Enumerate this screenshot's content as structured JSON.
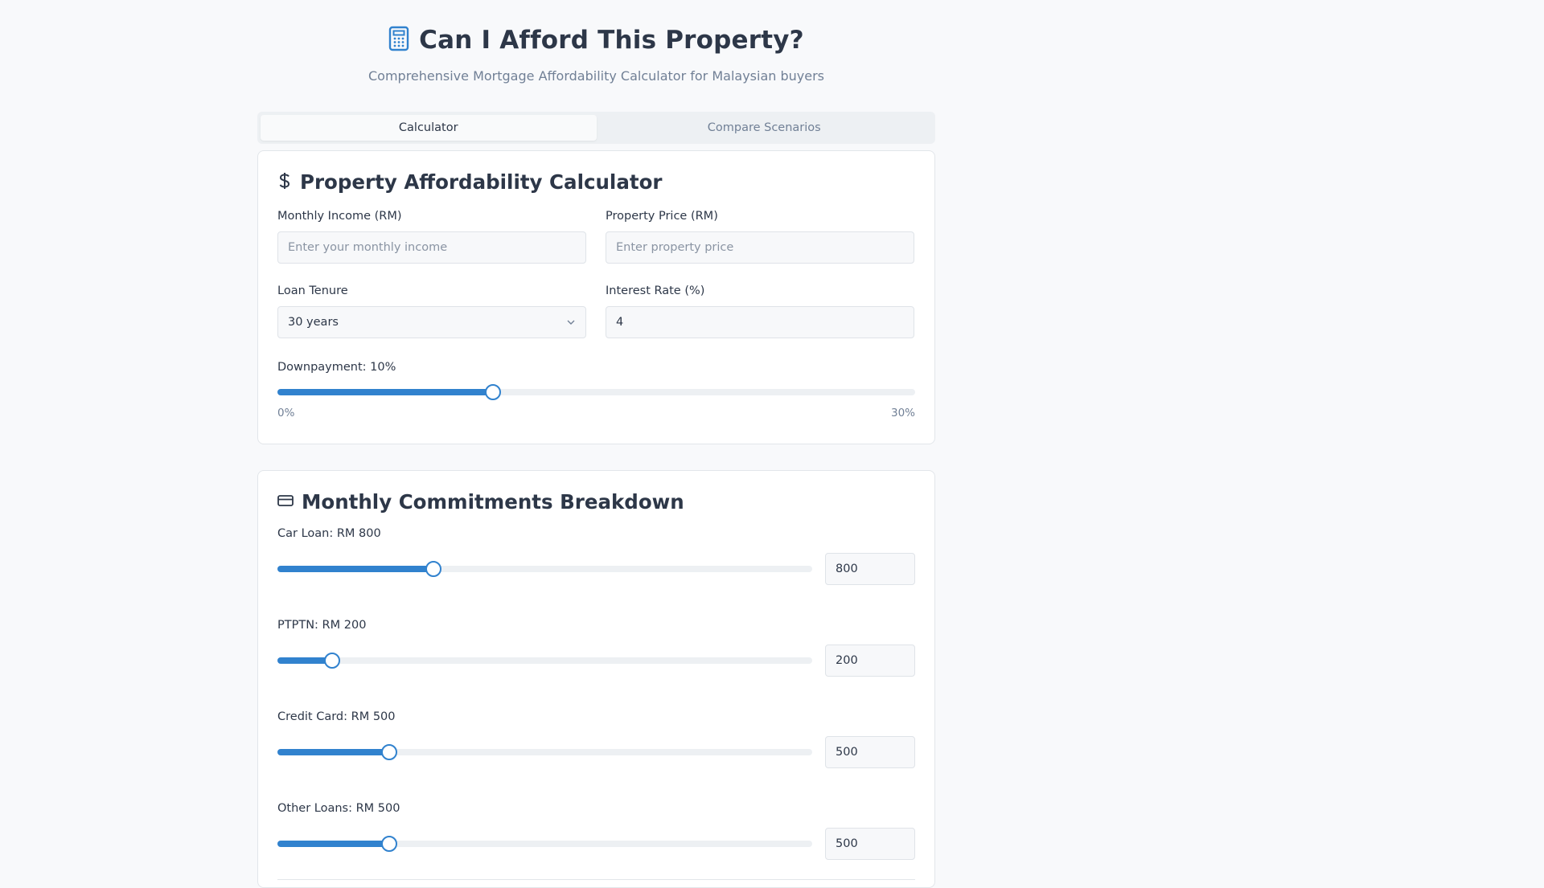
{
  "header": {
    "title": "Can I Afford This Property?",
    "subtitle": "Comprehensive Mortgage Affordability Calculator for Malaysian buyers",
    "icon": "calculator-icon"
  },
  "tabs": [
    {
      "label": "Calculator",
      "active": true
    },
    {
      "label": "Compare Scenarios",
      "active": false
    }
  ],
  "calculator": {
    "title": "Property Affordability Calculator",
    "icon": "dollar-icon",
    "income": {
      "label": "Monthly Income (RM)",
      "placeholder": "Enter your monthly income",
      "value": ""
    },
    "price": {
      "label": "Property Price (RM)",
      "placeholder": "Enter property price",
      "value": ""
    },
    "tenure": {
      "label": "Loan Tenure",
      "value": "30 years"
    },
    "interest": {
      "label": "Interest Rate (%)",
      "value": "4"
    },
    "downpayment": {
      "label": "Downpayment: 10%",
      "value": 10,
      "min": 0,
      "max": 30,
      "min_label": "0%",
      "max_label": "30%"
    }
  },
  "commitments": {
    "title": "Monthly Commitments Breakdown",
    "icon": "credit-card-icon",
    "items": [
      {
        "label": "Car Loan: RM 800",
        "value": "800",
        "fraction": 0.291
      },
      {
        "label": "PTPTN: RM 200",
        "value": "200",
        "fraction": 0.103
      },
      {
        "label": "Credit Card: RM 500",
        "value": "500",
        "fraction": 0.209
      },
      {
        "label": "Other Loans: RM 500",
        "value": "500",
        "fraction": 0.209
      }
    ]
  },
  "colors": {
    "accent": "#3182ce",
    "text": "#2d3748",
    "muted": "#718096"
  }
}
